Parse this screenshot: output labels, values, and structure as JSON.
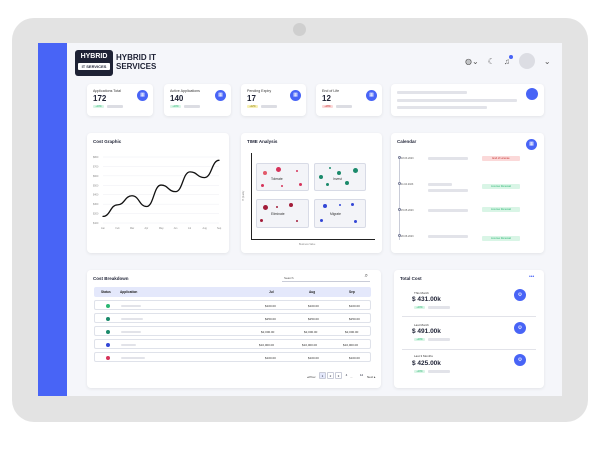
{
  "brand": {
    "logo_top": "HYBRID",
    "logo_sub": "IT SERVICES",
    "name": "HYBRID IT SERVICES"
  },
  "header": {
    "icons": [
      "globe-icon",
      "moon-icon",
      "bell-icon"
    ]
  },
  "kpis": [
    {
      "title": "Applications Total",
      "value": "172",
      "pill": "+10%",
      "pill_color": "#2bb673",
      "pill_bg": "#d9f5e6"
    },
    {
      "title": "Active Applications",
      "value": "140",
      "pill": "+10%",
      "pill_color": "#2bb673",
      "pill_bg": "#d9f5e6"
    },
    {
      "title": "Pending Expiry",
      "value": "17",
      "pill": "+12%",
      "pill_color": "#8a7a00",
      "pill_bg": "#f7f0b5"
    },
    {
      "title": "End of Life",
      "value": "12",
      "pill": "+18%",
      "pill_color": "#c22a2a",
      "pill_bg": "#fbd9d9"
    }
  ],
  "cost_graphic": {
    "title": "Cost Graphic",
    "chart_data": {
      "type": "line",
      "categories": [
        "Jan",
        "Feb",
        "Mar",
        "Apr",
        "May",
        "Jun",
        "Jul",
        "Aug",
        "Sep"
      ],
      "values": [
        8,
        22,
        33,
        20,
        46,
        38,
        62,
        55,
        76
      ],
      "y_ticks": [
        "$800",
        "$700",
        "$600",
        "$500",
        "$400",
        "$300",
        "$200",
        "$100"
      ],
      "ylim": [
        0,
        80
      ]
    }
  },
  "time_analysis": {
    "title": "TIME Analysis",
    "xlabel": "Business Value",
    "ylabel": "IT Quality",
    "quadrants": [
      "Tolerate",
      "Invest",
      "Eliminate",
      "Migrate"
    ]
  },
  "calendar": {
    "title": "Calendar",
    "events": [
      {
        "date": "18.03.2023",
        "pill": "End of License",
        "color": "#c22a2a",
        "bg": "#fbd9d9"
      },
      {
        "date": "11.04.2023",
        "pill": "License Renewal",
        "color": "#2bb673",
        "bg": "#d9f5e6"
      },
      {
        "date": "15.05.2023",
        "pill": "License Renewal",
        "color": "#2bb673",
        "bg": "#d9f5e6"
      },
      {
        "date": "20.06.2023",
        "pill": "License Renewal",
        "color": "#2bb673",
        "bg": "#d9f5e6"
      }
    ]
  },
  "cost_breakdown": {
    "title": "Cost Breakdown",
    "search_placeholder": "Search",
    "headers": {
      "status": "Status",
      "application": "Application",
      "c1": "Jul",
      "c2": "Aug",
      "c3": "Sep"
    },
    "rows": [
      {
        "status_color": "#2bb673",
        "c1": "$100.00",
        "c2": "$100.00",
        "c3": "$100.00"
      },
      {
        "status_color": "#1b8a6b",
        "c1": "$250.00",
        "c2": "$250.00",
        "c3": "$250.00"
      },
      {
        "status_color": "#1b8a6b",
        "c1": "$2,000.00",
        "c2": "$2,000.00",
        "c3": "$2,000.00"
      },
      {
        "status_color": "#3347d6",
        "c1": "$10,000.00",
        "c2": "$10,000.00",
        "c3": "$10,000.00"
      },
      {
        "status_color": "#d6335a",
        "c1": "$100.00",
        "c2": "$100.00",
        "c3": "$100.00"
      }
    ],
    "pager": {
      "prev": "◂ Prev",
      "pages": [
        "1",
        "2",
        "3",
        "4"
      ],
      "ellipsis": "...",
      "last": "12",
      "next": "Next ▸"
    }
  },
  "total_cost": {
    "title": "Total Cost",
    "more": "•••",
    "items": [
      {
        "label": "This Month",
        "value": "$ 431.00k",
        "pill": "+10%"
      },
      {
        "label": "Last Month",
        "value": "$ 491.00k",
        "pill": "+10%"
      },
      {
        "label": "Last 3 Months",
        "value": "$ 425.00k",
        "pill": "+10%"
      }
    ]
  }
}
